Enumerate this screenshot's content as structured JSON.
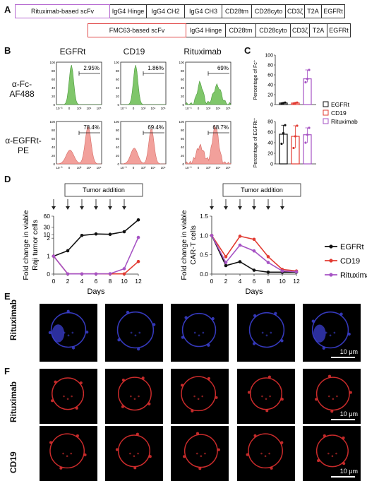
{
  "panels": {
    "A": "A",
    "B": "B",
    "C": "C",
    "D": "D",
    "E": "E",
    "F": "F"
  },
  "constructA": {
    "rows": [
      {
        "scfv": "Rituximab-based scFv",
        "segments": [
          "IgG4 Hinge",
          "IgG4 CH2",
          "IgG4 CH3",
          "CD28tm",
          "CD28cyto",
          "CD3ζ",
          "T2A",
          "EGFRt"
        ]
      },
      {
        "scfv": "FMC63-based scFv",
        "segments": [
          "IgG4 Hinge",
          "CD28tm",
          "CD28cyto",
          "CD3ζ",
          "T2A",
          "EGFRt"
        ]
      }
    ]
  },
  "flowB": {
    "columns": [
      "EGFRt",
      "CD19",
      "Rituximab"
    ],
    "rows": [
      {
        "label_lines": [
          "α-Fc-",
          "AF488"
        ],
        "color": "#7fc66a",
        "percents": [
          "2.95%",
          "1.86%",
          "69%"
        ]
      },
      {
        "label_lines": [
          "α-EGFRt-",
          "PE"
        ],
        "color": "#f2a09b",
        "percents": [
          "78.4%",
          "69.4%",
          "68.7%"
        ]
      }
    ],
    "ytick_labels": [
      "100",
      "80",
      "60",
      "40",
      "20",
      "0"
    ],
    "xtick_labels": [
      "10⁻³",
      "0",
      "10³",
      "10⁴",
      "10⁵"
    ]
  },
  "barsC": {
    "top": {
      "ylabel": "Percentage of Fc⁺",
      "yticks": [
        "0",
        "20",
        "40",
        "60",
        "80",
        "100"
      ],
      "ylim": [
        0,
        100
      ],
      "values": [
        3,
        3,
        52
      ],
      "points": [
        [
          2,
          3,
          4
        ],
        [
          2,
          3,
          4
        ],
        [
          45,
          52,
          70
        ]
      ]
    },
    "bottom": {
      "ylabel": "Percentage of EGFRt⁺",
      "yticks": [
        "0",
        "20",
        "40",
        "60",
        "80"
      ],
      "ylim": [
        0,
        80
      ],
      "values": [
        56,
        52,
        55
      ],
      "points": [
        [
          38,
          58,
          73
        ],
        [
          30,
          52,
          72
        ],
        [
          40,
          55,
          68
        ]
      ]
    },
    "legend": [
      {
        "name": "EGFRt",
        "color": "#111111"
      },
      {
        "name": "CD19",
        "color": "#e23b32"
      },
      {
        "name": "Rituximab",
        "color": "#a653c4"
      }
    ]
  },
  "chart_data": [
    {
      "type": "line",
      "title": "Tumor addition",
      "xlabel": "Days",
      "ylabel": "Fold change in viable Raji tumor cells",
      "x": [
        0,
        2,
        4,
        6,
        8,
        10,
        12
      ],
      "xticks": [
        "0",
        "2",
        "4",
        "6",
        "8",
        "10",
        "12"
      ],
      "yticks": [
        "0",
        "1",
        "2",
        "10",
        "30",
        "60"
      ],
      "ylim": [
        0,
        60
      ],
      "series": [
        {
          "name": "EGFRt",
          "color": "#111111",
          "values": [
            1,
            1.3,
            8,
            12,
            11,
            18,
            50
          ]
        },
        {
          "name": "CD19",
          "color": "#e23b32",
          "values": [
            1,
            0.01,
            0.01,
            0.01,
            0.01,
            0.01,
            0.7
          ]
        },
        {
          "name": "Rituximab",
          "color": "#a653c4",
          "values": [
            1,
            0.01,
            0.01,
            0.01,
            0.02,
            0.3,
            2.7
          ]
        }
      ]
    },
    {
      "type": "line",
      "title": "Tumor addition",
      "xlabel": "Days",
      "ylabel": "Fold change in viable CAR-T cells",
      "x": [
        0,
        2,
        4,
        6,
        8,
        10,
        12
      ],
      "xticks": [
        "0",
        "2",
        "4",
        "6",
        "8",
        "10",
        "12"
      ],
      "yticks": [
        "0.0",
        "0.5",
        "1.0",
        "1.5"
      ],
      "ylim": [
        0,
        1.5
      ],
      "series": [
        {
          "name": "EGFRt",
          "color": "#111111",
          "values": [
            1.0,
            0.22,
            0.32,
            0.1,
            0.05,
            0.05,
            0.05
          ]
        },
        {
          "name": "CD19",
          "color": "#e23b32",
          "values": [
            1.0,
            0.45,
            0.98,
            0.9,
            0.45,
            0.12,
            0.08
          ]
        },
        {
          "name": "Rituximab",
          "color": "#a653c4",
          "values": [
            1.0,
            0.3,
            0.75,
            0.6,
            0.3,
            0.08,
            0.06
          ]
        }
      ]
    }
  ],
  "legendD": [
    {
      "name": "EGFRt",
      "color": "#111111"
    },
    {
      "name": "CD19",
      "color": "#e23b32"
    },
    {
      "name": "Rituximab",
      "color": "#a653c4"
    }
  ],
  "microscopyE": {
    "row_label": "Rituximab",
    "scale_text": "10 μm",
    "color": "#3b3fd0",
    "count": 5
  },
  "microscopyF": {
    "rows": [
      {
        "label": "Rituximab",
        "scale_text": "10 μm"
      },
      {
        "label": "CD19",
        "scale_text": "10 μm"
      }
    ],
    "color": "#e03030",
    "count": 5
  }
}
